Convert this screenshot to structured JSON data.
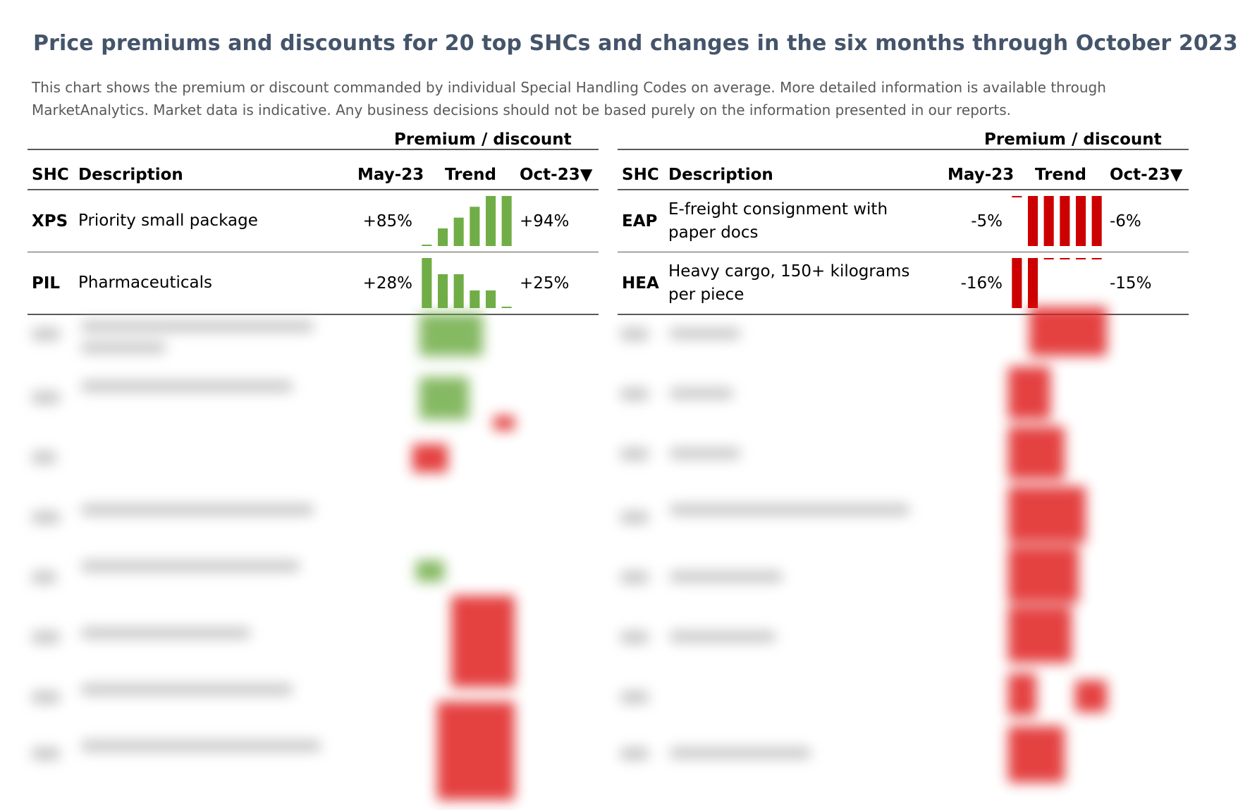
{
  "title": "Price premiums and discounts for 20 top SHCs and changes in the six months through October 2023",
  "subtitle": "This chart shows the premium or discount commanded by individual Special Handling Codes on average. More detailed information is available through MarketAnalytics. Market data is indicative. Any business decisions should not be based purely on the information presented in our reports.",
  "table_header": {
    "group": "Premium / discount",
    "shc": "SHC",
    "description": "Description",
    "may": "May-23",
    "trend": "Trend",
    "oct": "Oct-23▼"
  },
  "colors": {
    "positive": "#70ad47",
    "negative": "#cc0000",
    "rule": "#595959",
    "title": "#44546a"
  },
  "chart_data": [
    {
      "type": "table",
      "columns": [
        "SHC",
        "Description",
        "May-23",
        "Trend",
        "Oct-23"
      ],
      "rows": [
        {
          "shc": "XPS",
          "description": "Priority small package",
          "may": "+85%",
          "oct": "+94%",
          "trend": [
            85,
            88,
            90,
            92,
            94,
            94
          ]
        },
        {
          "shc": "PIL",
          "description": "Pharmaceuticals",
          "may": "+28%",
          "oct": "+25%",
          "trend": [
            28,
            27,
            27,
            26,
            26,
            25
          ]
        }
      ]
    },
    {
      "type": "table",
      "columns": [
        "SHC",
        "Description",
        "May-23",
        "Trend",
        "Oct-23"
      ],
      "rows": [
        {
          "shc": "EAP",
          "description": "E-freight consignment with paper docs",
          "may": "-5%",
          "oct": "-6%",
          "trend": [
            -5,
            -6,
            -6,
            -6,
            -6,
            -6
          ]
        },
        {
          "shc": "HEA",
          "description": "Heavy cargo, 150+ kilograms per piece",
          "may": "-16%",
          "oct": "-15%",
          "trend": [
            -16,
            -16,
            -15,
            -15,
            -15,
            -15
          ]
        }
      ]
    }
  ]
}
